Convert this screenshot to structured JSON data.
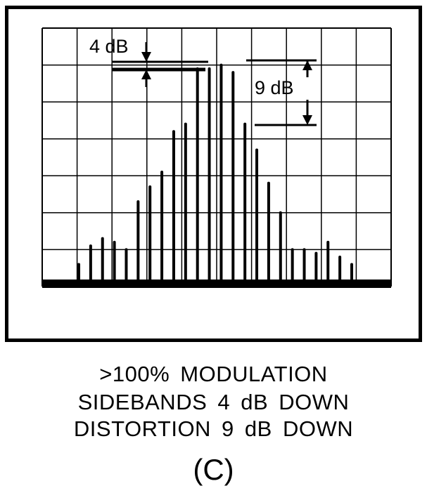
{
  "annotations": {
    "carrier_ref": "4 dB",
    "distortion_ref": "9 dB"
  },
  "caption": {
    "line1": ">100% MODULATION",
    "line2": "SIDEBANDS 4 dB DOWN",
    "line3": "DISTORTION 9 dB DOWN"
  },
  "panel_label": "(C)",
  "chart_data": {
    "type": "bar",
    "title": "",
    "xlabel": "",
    "ylabel": "",
    "grid": true,
    "grid_divisions": [
      10,
      7
    ],
    "ylim": [
      0,
      7
    ],
    "spectral_lines": [
      0.6,
      1.1,
      1.3,
      1.2,
      1.0,
      2.3,
      2.7,
      3.1,
      4.2,
      4.4,
      5.9,
      5.9,
      6.0,
      5.8,
      4.4,
      3.7,
      2.8,
      2.0,
      1.0,
      1.0,
      0.9,
      1.2,
      0.8,
      0.6
    ],
    "line_color": "#000000"
  }
}
